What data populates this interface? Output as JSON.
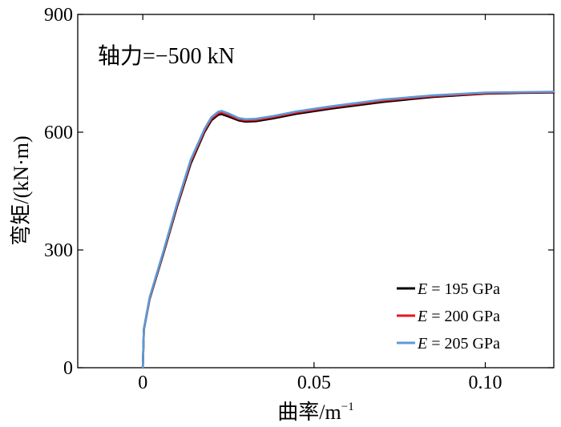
{
  "chart_data": {
    "type": "line",
    "annotation": "轴力=−500 kN",
    "xlabel": "曲率/m",
    "xlabel_sup": "−1",
    "ylabel": "弯矩/(kN·m)",
    "xlim": [
      -0.019,
      0.12
    ],
    "ylim": [
      0,
      900
    ],
    "x_ticks": [
      0,
      0.05,
      0.1
    ],
    "x_tick_labels": [
      "0",
      "0.05",
      "0.10"
    ],
    "y_ticks": [
      0,
      300,
      600,
      900
    ],
    "y_tick_labels": [
      "0",
      "300",
      "600",
      "900"
    ],
    "grid": false,
    "legend_position": "bottom-right",
    "series": [
      {
        "name": "E = 195 GPa",
        "legend_prefix": "E",
        "legend_rest": " = 195 GPa",
        "color": "#000000",
        "x": [
          0,
          0.0003,
          0.002,
          0.006,
          0.01,
          0.014,
          0.018,
          0.02,
          0.022,
          0.023,
          0.025,
          0.028,
          0.03,
          0.033,
          0.038,
          0.045,
          0.055,
          0.07,
          0.085,
          0.1,
          0.11,
          0.12
        ],
        "y": [
          0,
          97,
          175,
          290,
          410,
          520,
          600,
          630,
          644,
          646,
          640,
          630,
          627,
          628,
          635,
          647,
          660,
          677,
          690,
          698,
          700,
          701
        ]
      },
      {
        "name": "E = 200 GPa",
        "legend_prefix": "E",
        "legend_rest": " = 200 GPa",
        "color": "#e8141e",
        "x": [
          0,
          0.0003,
          0.002,
          0.006,
          0.01,
          0.014,
          0.018,
          0.02,
          0.022,
          0.023,
          0.025,
          0.028,
          0.03,
          0.033,
          0.038,
          0.045,
          0.055,
          0.07,
          0.085,
          0.1,
          0.11,
          0.12
        ],
        "y": [
          0,
          98,
          177,
          293,
          414,
          525,
          604,
          634,
          648,
          650,
          644,
          633,
          630,
          631,
          638,
          650,
          663,
          680,
          692,
          699,
          701,
          702
        ]
      },
      {
        "name": "E = 205 GPa",
        "legend_prefix": "E",
        "legend_rest": " = 205 GPa",
        "color": "#5b9bd5",
        "x": [
          0,
          0.0003,
          0.002,
          0.006,
          0.01,
          0.014,
          0.018,
          0.02,
          0.022,
          0.023,
          0.025,
          0.028,
          0.03,
          0.033,
          0.038,
          0.045,
          0.055,
          0.07,
          0.085,
          0.1,
          0.11,
          0.12
        ],
        "y": [
          0,
          99,
          179,
          296,
          418,
          530,
          608,
          638,
          652,
          654,
          648,
          636,
          633,
          634,
          641,
          653,
          666,
          683,
          694,
          701,
          702,
          703
        ]
      }
    ]
  }
}
